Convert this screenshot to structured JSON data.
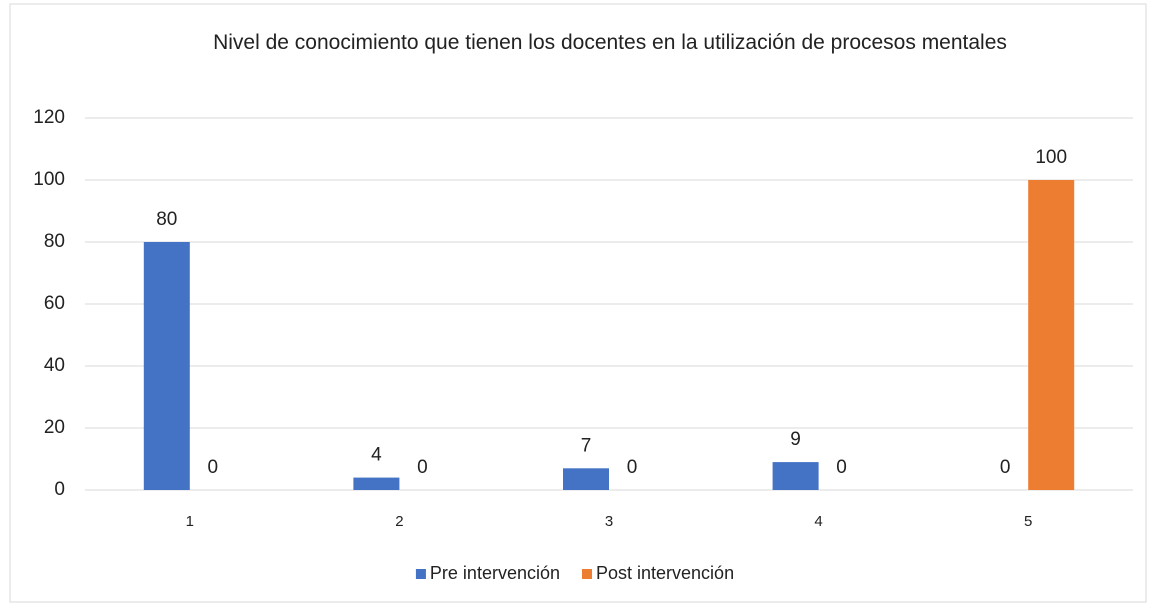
{
  "chart_data": {
    "type": "bar",
    "title": "Nivel de conocimiento que tienen los docentes en la utilización de procesos mentales",
    "categories": [
      "1",
      "2",
      "3",
      "4",
      "5"
    ],
    "series": [
      {
        "name": "Pre intervención",
        "color": "#4472c4",
        "values": [
          80,
          4,
          7,
          9,
          0
        ]
      },
      {
        "name": "Post intervención",
        "color": "#ed7d31",
        "values": [
          0,
          0,
          0,
          0,
          100
        ]
      }
    ],
    "ylim": [
      0,
      120
    ],
    "yticks": [
      0,
      20,
      40,
      60,
      80,
      100,
      120
    ],
    "grid": true,
    "legend": "bottom"
  }
}
